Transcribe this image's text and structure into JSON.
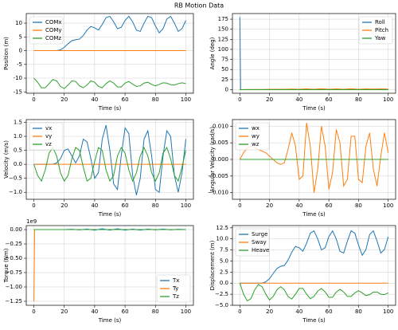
{
  "title": "RB Motion Data",
  "chart_data": [
    {
      "type": "line",
      "xlabel": "Time (s)",
      "ylabel": "Position (m)",
      "grid": true,
      "legend": "upper left",
      "x": [
        0,
        2.5,
        5,
        7.5,
        10,
        12.5,
        15,
        17.5,
        20,
        22.5,
        25,
        27.5,
        30,
        32.5,
        35,
        37.5,
        40,
        42.5,
        45,
        47.5,
        50,
        52.5,
        55,
        57.5,
        60,
        62.5,
        65,
        67.5,
        70,
        72.5,
        75,
        77.5,
        80,
        82.5,
        85,
        87.5,
        90,
        92.5,
        95,
        97.5,
        100
      ],
      "xlim": [
        -5,
        105
      ],
      "xticks": [
        0,
        20,
        40,
        60,
        80,
        100
      ],
      "ylim": [
        -15.5,
        13.5
      ],
      "yticks": [
        -15,
        -10,
        -5,
        0,
        5,
        10
      ],
      "series": [
        {
          "name": "COMx",
          "color": "#1f77b4",
          "values": [
            0,
            0,
            0,
            0,
            0,
            0,
            0,
            0.3,
            1.2,
            2.5,
            3.6,
            4.0,
            4.2,
            5.5,
            7.5,
            8.8,
            8.3,
            7.5,
            9.5,
            12,
            12.5,
            10.5,
            8,
            8.5,
            11,
            12.5,
            10.5,
            7.5,
            7,
            10,
            12.5,
            12,
            9,
            6.5,
            8,
            11.5,
            12.5,
            10,
            7,
            8,
            11
          ]
        },
        {
          "name": "COMy",
          "color": "#ff7f0e",
          "values": [
            0,
            0,
            0,
            0,
            0,
            0,
            0,
            0,
            0,
            0,
            0,
            0,
            0,
            0,
            0,
            0,
            0,
            0,
            0,
            0,
            0,
            0,
            0,
            0,
            0,
            0,
            0,
            0,
            0,
            0,
            0,
            0,
            0,
            0,
            0,
            0,
            0,
            0,
            0,
            0,
            0
          ]
        },
        {
          "name": "COMz",
          "color": "#2ca02c",
          "values": [
            -10,
            -11.5,
            -13.5,
            -13.5,
            -12,
            -10.5,
            -11,
            -13,
            -13.8,
            -12.5,
            -11,
            -11.2,
            -12.8,
            -13.5,
            -12.5,
            -11,
            -11.5,
            -13,
            -13.5,
            -12,
            -11,
            -11.8,
            -13.2,
            -13.2,
            -11.8,
            -11.2,
            -12.2,
            -13,
            -12.8,
            -11.8,
            -11.5,
            -12.3,
            -12.8,
            -12.3,
            -11.7,
            -11.8,
            -12.4,
            -12.5,
            -12,
            -11.7,
            -12
          ]
        }
      ]
    },
    {
      "type": "line",
      "xlabel": "Time (s)",
      "ylabel": "Angle (deg)",
      "grid": true,
      "legend": "upper right",
      "x": [
        0,
        0.5,
        5,
        10,
        15,
        20,
        25,
        30,
        35,
        40,
        45,
        50,
        55,
        60,
        65,
        70,
        75,
        80,
        85,
        90,
        95,
        100
      ],
      "xlim": [
        -5,
        105
      ],
      "xticks": [
        0,
        20,
        40,
        60,
        80,
        100
      ],
      "ylim": [
        -9,
        189
      ],
      "yticks": [
        0,
        25,
        50,
        75,
        100,
        125,
        150,
        175
      ],
      "series": [
        {
          "name": "Roll",
          "color": "#1f77b4",
          "values": [
            180,
            0,
            0,
            0,
            0,
            0,
            0,
            0,
            0,
            0,
            0,
            0,
            0,
            0,
            0,
            0,
            0,
            0,
            0,
            0,
            0,
            0
          ]
        },
        {
          "name": "Pitch",
          "color": "#ff7f0e",
          "values": [
            0,
            0,
            0.5,
            0.5,
            0.5,
            1,
            1,
            1,
            1.5,
            1,
            2,
            1,
            2.5,
            1,
            2,
            1,
            2.5,
            1,
            2,
            1.5,
            2,
            1.5
          ]
        },
        {
          "name": "Yaw",
          "color": "#2ca02c",
          "values": [
            0,
            0,
            0,
            0,
            0,
            0,
            0,
            0,
            0,
            0,
            0,
            0,
            0,
            0,
            0,
            0,
            0,
            0,
            0,
            0,
            0,
            0
          ]
        }
      ]
    },
    {
      "type": "line",
      "xlabel": "Time (s)",
      "ylabel": "Velocity (m/s)",
      "grid": true,
      "legend": "upper left",
      "x": [
        0,
        2.5,
        5,
        7.5,
        10,
        12.5,
        15,
        17.5,
        20,
        22.5,
        25,
        27.5,
        30,
        32.5,
        35,
        37.5,
        40,
        42.5,
        45,
        47.5,
        50,
        52.5,
        55,
        57.5,
        60,
        62.5,
        65,
        67.5,
        70,
        72.5,
        75,
        77.5,
        80,
        82.5,
        85,
        87.5,
        90,
        92.5,
        95,
        97.5,
        100
      ],
      "xlim": [
        -5,
        105
      ],
      "xticks": [
        0,
        20,
        40,
        60,
        80,
        100
      ],
      "ylim": [
        -1.25,
        1.6
      ],
      "yticks": [
        {
          "value": -1,
          "label": "−1.0"
        },
        {
          "value": -0.5,
          "label": "−0.5"
        },
        {
          "value": 0,
          "label": "0.0"
        },
        0.5,
        {
          "value": 1,
          "label": "1.0"
        },
        1.5
      ],
      "series": [
        {
          "name": "vx",
          "color": "#1f77b4",
          "values": [
            0,
            0,
            0,
            0,
            0,
            0,
            0.05,
            0.2,
            0.5,
            0.55,
            0.3,
            0.05,
            0.3,
            0.9,
            0.8,
            0.2,
            -0.5,
            -0.3,
            0.9,
            1.4,
            0.5,
            -0.7,
            -0.9,
            0.3,
            1.3,
            1.1,
            -0.4,
            -1.1,
            -0.5,
            0.9,
            1.2,
            0.3,
            -0.9,
            -1.0,
            0.3,
            1.2,
            1.0,
            -0.4,
            -1.0,
            -0.3,
            0.9
          ]
        },
        {
          "name": "vy",
          "color": "#ff7f0e",
          "values": [
            0,
            0,
            0,
            0,
            0,
            0,
            0,
            0,
            0,
            0,
            0,
            0,
            0,
            0,
            0,
            0,
            0,
            0,
            0,
            0,
            0,
            0,
            0,
            0,
            0,
            0,
            0,
            0,
            0,
            0,
            0,
            0,
            0,
            0,
            0,
            0,
            0,
            0,
            0,
            0,
            0
          ]
        },
        {
          "name": "vz",
          "color": "#2ca02c",
          "values": [
            0,
            -0.4,
            -0.6,
            -0.2,
            0.4,
            0.6,
            0.3,
            -0.3,
            -0.6,
            -0.4,
            0.2,
            0.6,
            0.5,
            -0.1,
            -0.6,
            -0.5,
            0.1,
            0.6,
            0.5,
            -0.2,
            -0.6,
            -0.4,
            0.3,
            0.6,
            0.4,
            -0.2,
            -0.6,
            -0.3,
            0.3,
            0.6,
            0.3,
            -0.3,
            -0.6,
            -0.3,
            0.4,
            0.6,
            0.2,
            -0.4,
            -0.6,
            -0.1,
            0.5
          ]
        }
      ]
    },
    {
      "type": "line",
      "xlabel": "Time (s)",
      "ylabel": "Angular Velocity (rad/s)",
      "grid": true,
      "legend": "upper left",
      "x": [
        0,
        2.5,
        5,
        7.5,
        10,
        12.5,
        15,
        17.5,
        20,
        22.5,
        25,
        27.5,
        30,
        32.5,
        35,
        37.5,
        40,
        42.5,
        45,
        47.5,
        50,
        52.5,
        55,
        57.5,
        60,
        62.5,
        65,
        67.5,
        70,
        72.5,
        75,
        77.5,
        80,
        82.5,
        85,
        87.5,
        90,
        92.5,
        95,
        97.5,
        100
      ],
      "xlim": [
        -5,
        105
      ],
      "xticks": [
        0,
        20,
        40,
        60,
        80,
        100
      ],
      "ylim": [
        -0.012,
        0.012
      ],
      "yticks": [
        {
          "value": -0.01,
          "label": "−0.010"
        },
        {
          "value": -0.005,
          "label": "−0.005"
        },
        {
          "value": 0,
          "label": "0.000"
        },
        0.005,
        {
          "value": 0.01,
          "label": "0.010"
        }
      ],
      "series": [
        {
          "name": "wx",
          "color": "#1f77b4",
          "values": [
            0,
            0,
            0,
            0,
            0,
            0,
            0,
            0,
            0,
            0,
            0,
            0,
            0,
            0,
            0,
            0,
            0,
            0,
            0,
            0,
            0,
            0,
            0,
            0,
            0,
            0,
            0,
            0,
            0,
            0,
            0,
            0,
            0,
            0,
            0,
            0,
            0,
            0,
            0,
            0,
            0
          ]
        },
        {
          "name": "wy",
          "color": "#ff7f0e",
          "values": [
            0,
            0.002,
            0.0035,
            0.004,
            0.0035,
            0.003,
            0.0025,
            0.002,
            0.001,
            0,
            -0.001,
            -0.0015,
            -0.001,
            0.003,
            0.008,
            0.004,
            -0.006,
            -0.005,
            0.011,
            0.004,
            -0.01,
            -0.003,
            0.01,
            0.004,
            -0.009,
            -0.004,
            0.009,
            0.005,
            -0.008,
            -0.006,
            0.007,
            0.007,
            -0.006,
            -0.007,
            0.004,
            0.008,
            -0.003,
            -0.008,
            0.001,
            0.008,
            0.002
          ]
        },
        {
          "name": "wz",
          "color": "#2ca02c",
          "values": [
            0,
            0,
            0,
            0,
            0,
            0,
            0,
            0,
            0,
            0,
            0,
            0,
            0,
            0,
            0,
            0,
            0,
            0,
            0,
            0,
            0,
            0,
            0,
            0,
            0,
            0,
            0,
            0,
            0,
            0,
            0,
            0,
            0,
            0,
            0,
            0,
            0,
            0,
            0,
            0,
            0
          ]
        }
      ]
    },
    {
      "type": "line",
      "xlabel": "Time (s)",
      "ylabel": "Torque (Nm)",
      "offset_text": "1e9",
      "grid": true,
      "legend": "lower right",
      "x": [
        0,
        0.5,
        5,
        10,
        15,
        20,
        25,
        30,
        35,
        40,
        45,
        50,
        55,
        60,
        65,
        70,
        75,
        80,
        85,
        90,
        95,
        100
      ],
      "xlim": [
        -5,
        105
      ],
      "xticks": [
        0,
        20,
        40,
        60,
        80,
        100
      ],
      "ylim": [
        -1.32,
        0.07
      ],
      "yticks": [
        {
          "value": -1.25,
          "label": "−1.25"
        },
        {
          "value": -1,
          "label": "−1.00"
        },
        {
          "value": -0.75,
          "label": "−0.75"
        },
        {
          "value": -0.5,
          "label": "−0.50"
        },
        {
          "value": -0.25,
          "label": "−0.25"
        },
        {
          "value": 0,
          "label": "0.00"
        }
      ],
      "series": [
        {
          "name": "Tx",
          "color": "#1f77b4",
          "values": [
            0,
            0,
            0,
            0,
            0,
            0,
            0.005,
            -0.005,
            0.01,
            -0.01,
            0.015,
            -0.01,
            0.015,
            -0.01,
            0.01,
            -0.01,
            0.01,
            -0.005,
            0.01,
            -0.005,
            0.005,
            0
          ]
        },
        {
          "name": "Ty",
          "color": "#ff7f0e",
          "values": [
            -1.25,
            0,
            0,
            0,
            0,
            0,
            0,
            0,
            0,
            0,
            0,
            0,
            0,
            0,
            0,
            0,
            0,
            0,
            0,
            0,
            0,
            0
          ]
        },
        {
          "name": "Tz",
          "color": "#2ca02c",
          "values": [
            0,
            0,
            0,
            0,
            0,
            0,
            0,
            0,
            0,
            0,
            0,
            0,
            0,
            0,
            0,
            0,
            0,
            0,
            0,
            0,
            0,
            0
          ]
        }
      ]
    },
    {
      "type": "line",
      "xlabel": "Time (s)",
      "ylabel": "Displacement (m)",
      "grid": true,
      "legend": "upper left",
      "x": [
        0,
        2.5,
        5,
        7.5,
        10,
        12.5,
        15,
        17.5,
        20,
        22.5,
        25,
        27.5,
        30,
        32.5,
        35,
        37.5,
        40,
        42.5,
        45,
        47.5,
        50,
        52.5,
        55,
        57.5,
        60,
        62.5,
        65,
        67.5,
        70,
        72.5,
        75,
        77.5,
        80,
        82.5,
        85,
        87.5,
        90,
        92.5,
        95,
        97.5,
        100
      ],
      "xlim": [
        -5,
        105
      ],
      "xticks": [
        0,
        20,
        40,
        60,
        80,
        100
      ],
      "ylim": [
        -5,
        13
      ],
      "yticks": [
        {
          "value": -5,
          "label": "−5.0"
        },
        {
          "value": -2.5,
          "label": "−2.5"
        },
        {
          "value": 0,
          "label": "0.0"
        },
        2.5,
        {
          "value": 5,
          "label": "5.0"
        },
        7.5,
        {
          "value": 10,
          "label": "10.0"
        },
        12.5
      ],
      "series": [
        {
          "name": "Surge",
          "color": "#1f77b4",
          "values": [
            0,
            0,
            0,
            0,
            0,
            0,
            0,
            0.3,
            1.0,
            2.2,
            3.3,
            3.8,
            4.0,
            5.2,
            7.0,
            8.3,
            8.0,
            7.2,
            9.0,
            11.3,
            11.8,
            10,
            7.5,
            8,
            10.5,
            11.8,
            10,
            7.2,
            6.8,
            9.5,
            11.8,
            11.3,
            8.6,
            6.3,
            7.6,
            11,
            11.8,
            9.5,
            6.8,
            7.6,
            10.5
          ]
        },
        {
          "name": "Sway",
          "color": "#ff7f0e",
          "values": [
            0,
            0,
            0,
            0,
            0,
            0,
            0,
            0,
            0,
            0,
            0,
            0,
            0,
            0,
            0,
            0,
            0,
            0,
            0,
            0,
            0,
            0,
            0,
            0,
            0,
            0,
            0,
            0,
            0,
            0,
            0,
            0,
            0,
            0,
            0,
            0,
            0,
            0,
            0,
            0,
            0
          ]
        },
        {
          "name": "Heave",
          "color": "#2ca02c",
          "values": [
            0,
            -2.5,
            -4,
            -3.5,
            -1.5,
            -0.3,
            -0.8,
            -2.5,
            -3.8,
            -3,
            -1.5,
            -0.8,
            -1.5,
            -3,
            -3.6,
            -2.5,
            -1.2,
            -1.2,
            -2.5,
            -3.5,
            -3,
            -1.8,
            -1.2,
            -2,
            -3.2,
            -3.2,
            -2,
            -1.4,
            -2,
            -3,
            -3,
            -2.2,
            -1.7,
            -2.2,
            -2.8,
            -2.6,
            -2,
            -2,
            -2.5,
            -2.6,
            -2.2
          ]
        }
      ]
    }
  ]
}
